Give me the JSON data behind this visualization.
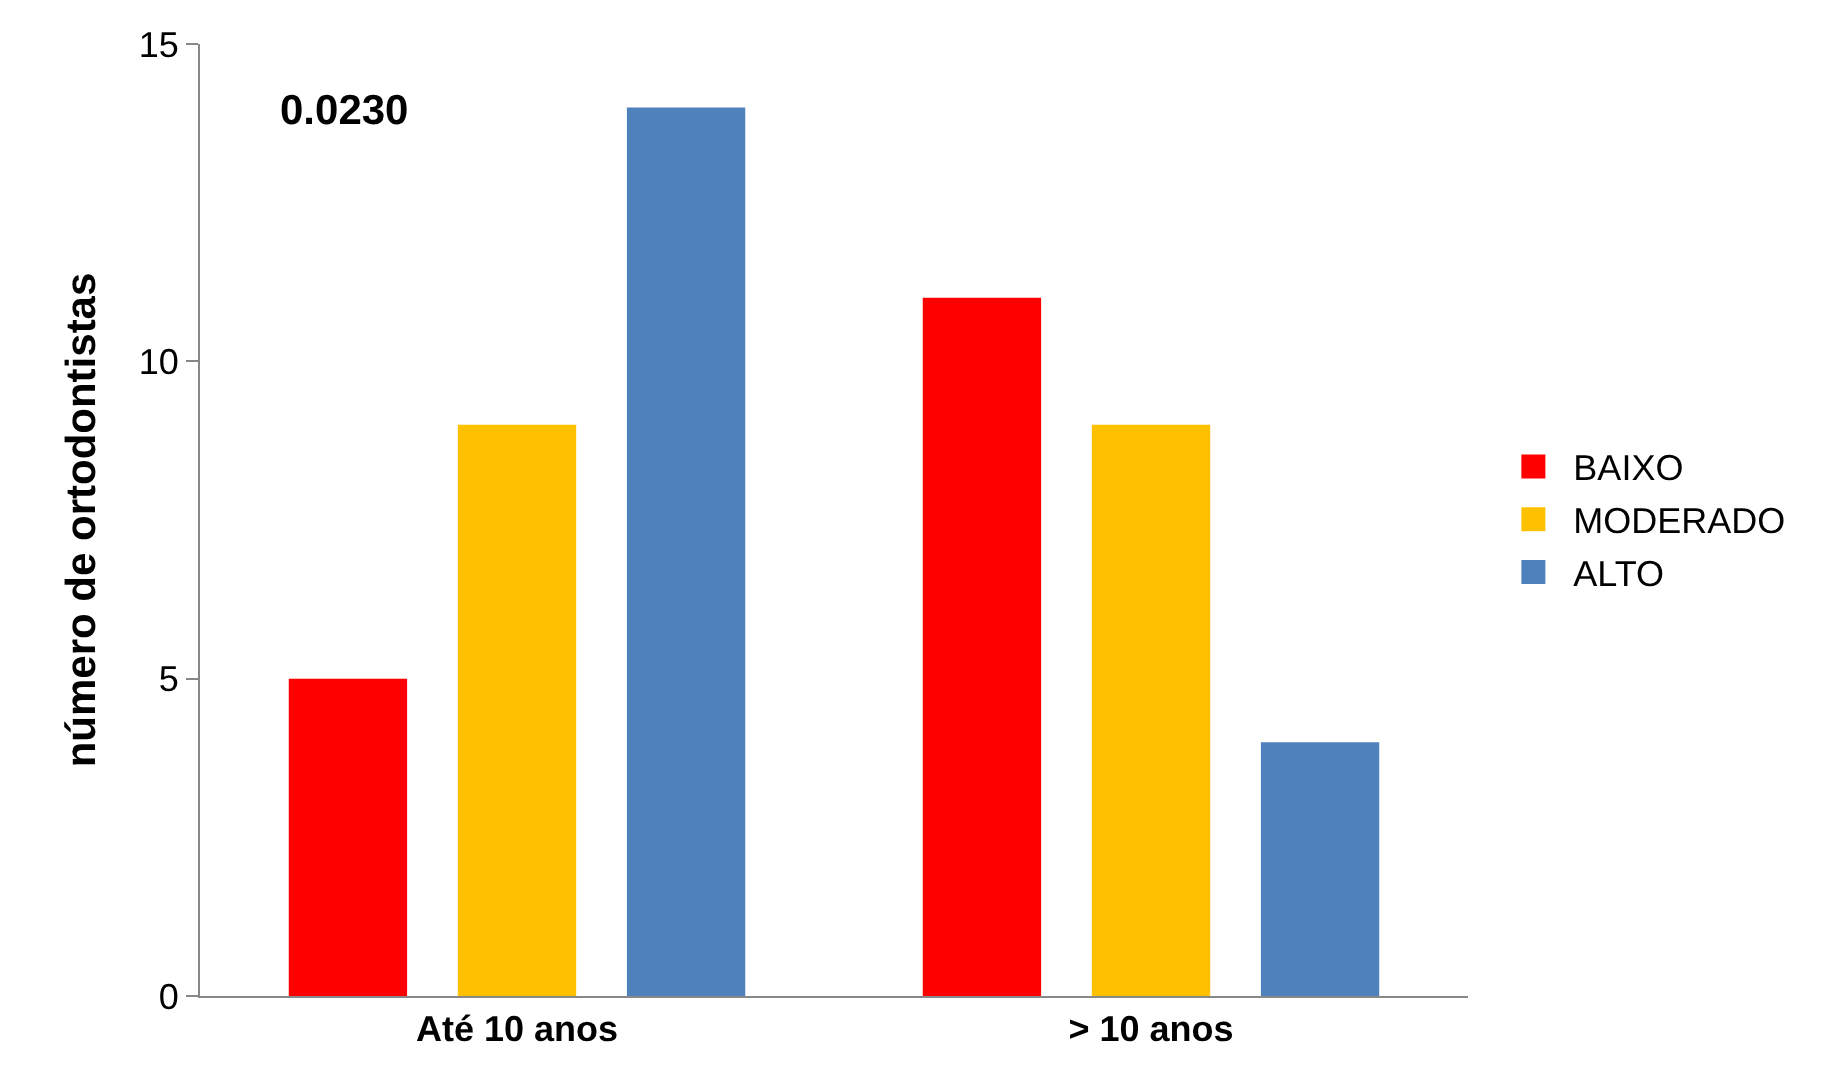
{
  "chart_data": {
    "type": "bar",
    "ylabel": "número de ortodontistas",
    "categories": [
      "Até 10 anos",
      "> 10 anos"
    ],
    "series": [
      {
        "name": "BAIXO",
        "color": "#ff0000",
        "values": [
          5,
          11
        ]
      },
      {
        "name": "MODERADO",
        "color": "#ffc000",
        "values": [
          9,
          9
        ]
      },
      {
        "name": "ALTO",
        "color": "#4f81bd",
        "values": [
          14,
          4
        ]
      }
    ],
    "ylim": [
      0,
      15
    ],
    "yticks": [
      0,
      5,
      10,
      15
    ],
    "legend": "right",
    "annotations": [
      "0.0230"
    ]
  }
}
